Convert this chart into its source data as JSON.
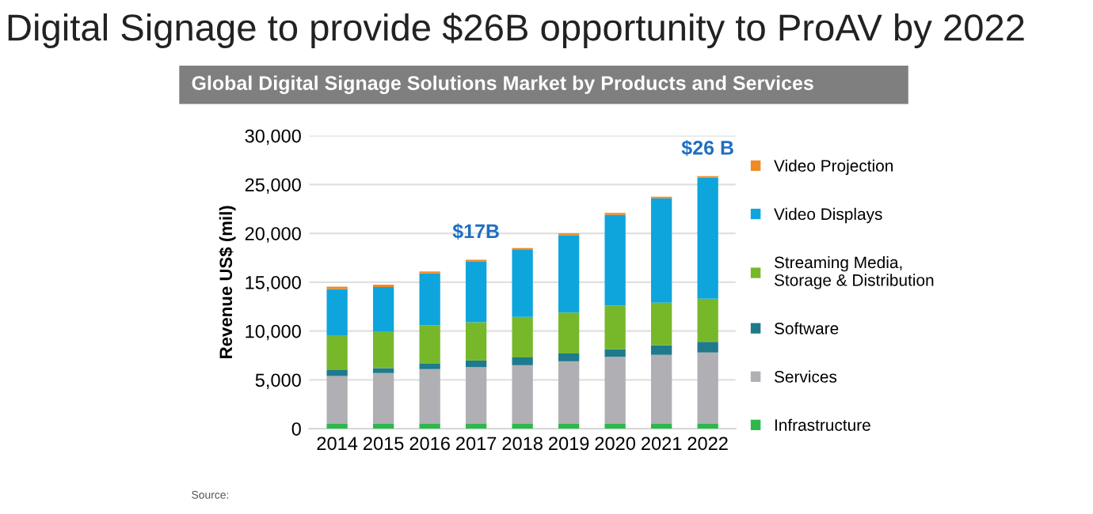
{
  "chart_data": {
    "type": "bar",
    "title": "Digital Signage to provide $26B opportunity to ProAV by 2022",
    "subtitle": "Global Digital Signage Solutions Market by Products and Services",
    "ylabel": "Revenue US$ (mil)",
    "categories": [
      "2014",
      "2015",
      "2016",
      "2017",
      "2018",
      "2019",
      "2020",
      "2021",
      "2022"
    ],
    "stacked": true,
    "series": [
      {
        "name": "Infrastructure",
        "color": "#2eb84c",
        "values": [
          500,
          500,
          500,
          500,
          500,
          500,
          500,
          500,
          500
        ]
      },
      {
        "name": "Services",
        "color": "#b0b0b4",
        "values": [
          4900,
          5200,
          5600,
          5800,
          6000,
          6400,
          6850,
          7050,
          7300
        ]
      },
      {
        "name": "Software",
        "color": "#1f7a8c",
        "values": [
          600,
          500,
          600,
          700,
          800,
          800,
          800,
          1000,
          1100
        ]
      },
      {
        "name": "Streaming Media,\nStorage & Distribution",
        "color": "#77b82a",
        "values": [
          3500,
          3700,
          3900,
          3900,
          4150,
          4200,
          4450,
          4350,
          4400
        ]
      },
      {
        "name": "Video Displays",
        "color": "#0ea5dc",
        "values": [
          4800,
          4600,
          5300,
          6200,
          6850,
          7900,
          9300,
          10700,
          12400
        ]
      },
      {
        "name": "Video Projection",
        "color": "#f08a24",
        "values": [
          250,
          250,
          200,
          200,
          200,
          200,
          200,
          150,
          150
        ]
      }
    ],
    "ylim": [
      0,
      30000
    ],
    "yticks": [
      {
        "value": 0,
        "label": "0"
      },
      {
        "value": 5000,
        "label": "5,000"
      },
      {
        "value": 10000,
        "label": "10,000"
      },
      {
        "value": 15000,
        "label": "15,000"
      },
      {
        "value": 20000,
        "label": "20,000"
      },
      {
        "value": 25000,
        "label": "25,000"
      },
      {
        "value": 30000,
        "label": "30,000"
      }
    ],
    "grid": "y",
    "legend": "right",
    "annotations": [
      {
        "text": "$17B",
        "x": "2017",
        "y": 17300
      },
      {
        "text": "$26 B",
        "x": "2022",
        "y": 25850
      },
      "Source:"
    ]
  }
}
